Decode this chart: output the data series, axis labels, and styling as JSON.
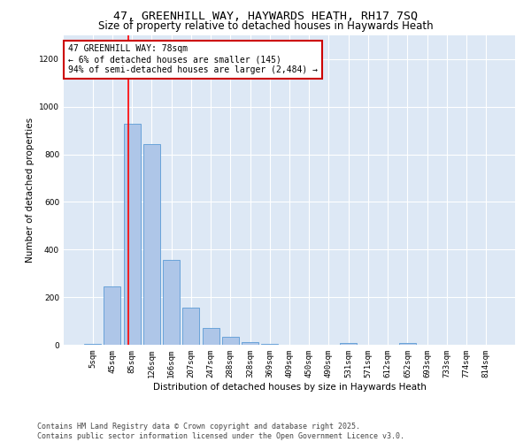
{
  "title": "47, GREENHILL WAY, HAYWARDS HEATH, RH17 7SQ",
  "subtitle": "Size of property relative to detached houses in Haywards Heath",
  "xlabel": "Distribution of detached houses by size in Haywards Heath",
  "ylabel": "Number of detached properties",
  "bar_color": "#aec6e8",
  "bar_edge_color": "#5b9bd5",
  "bg_color": "#dde8f5",
  "grid_color": "#ffffff",
  "annotation_line1": "47 GREENHILL WAY: 78sqm",
  "annotation_line2": "← 6% of detached houses are smaller (145)",
  "annotation_line3": "94% of semi-detached houses are larger (2,484) →",
  "annotation_box_color": "#cc0000",
  "vline_index": 1.825,
  "categories": [
    "5sqm",
    "45sqm",
    "85sqm",
    "126sqm",
    "166sqm",
    "207sqm",
    "247sqm",
    "288sqm",
    "328sqm",
    "369sqm",
    "409sqm",
    "450sqm",
    "490sqm",
    "531sqm",
    "571sqm",
    "612sqm",
    "652sqm",
    "693sqm",
    "733sqm",
    "774sqm",
    "814sqm"
  ],
  "values": [
    5,
    247,
    930,
    845,
    355,
    157,
    70,
    33,
    13,
    5,
    1,
    0,
    0,
    8,
    0,
    0,
    6,
    0,
    0,
    0,
    0
  ],
  "ylim": [
    0,
    1300
  ],
  "yticks": [
    0,
    200,
    400,
    600,
    800,
    1000,
    1200
  ],
  "footer": "Contains HM Land Registry data © Crown copyright and database right 2025.\nContains public sector information licensed under the Open Government Licence v3.0.",
  "title_fontsize": 9.5,
  "subtitle_fontsize": 8.5,
  "axis_label_fontsize": 7.5,
  "tick_fontsize": 6.5,
  "annotation_fontsize": 7,
  "footer_fontsize": 6
}
